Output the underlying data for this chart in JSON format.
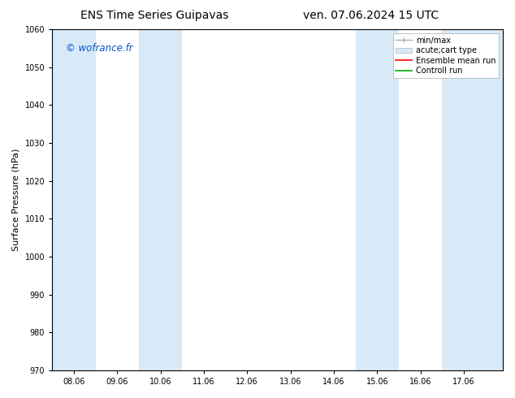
{
  "title_left": "ENS Time Series Guipavas",
  "title_right": "ven. 07.06.2024 15 UTC",
  "ylabel": "Surface Pressure (hPa)",
  "watermark": "© wofrance.fr",
  "watermark_color": "#0055cc",
  "ylim": [
    970,
    1060
  ],
  "yticks": [
    970,
    980,
    990,
    1000,
    1010,
    1020,
    1030,
    1040,
    1050,
    1060
  ],
  "x_labels": [
    "08.06",
    "09.06",
    "10.06",
    "11.06",
    "12.06",
    "13.06",
    "14.06",
    "15.06",
    "16.06",
    "17.06"
  ],
  "x_values": [
    0,
    1,
    2,
    3,
    4,
    5,
    6,
    7,
    8,
    9
  ],
  "xlim": [
    -0.5,
    9.9
  ],
  "shaded_bands": [
    {
      "x_start": -0.5,
      "x_end": 0.5
    },
    {
      "x_start": 1.5,
      "x_end": 2.5
    },
    {
      "x_start": 6.5,
      "x_end": 7.5
    },
    {
      "x_start": 8.5,
      "x_end": 9.9
    }
  ],
  "band_color": "#d8eaf8",
  "background_color": "#ffffff",
  "legend_entries": [
    {
      "label": "min/max"
    },
    {
      "label": "acute;cart type"
    },
    {
      "label": "Ensemble mean run"
    },
    {
      "label": "Controll run"
    }
  ],
  "legend_colors": [
    "#aaaaaa",
    "#c8ddf0",
    "#ff0000",
    "#00aa00"
  ],
  "title_fontsize": 10,
  "tick_fontsize": 7,
  "ylabel_fontsize": 8,
  "legend_fontsize": 7
}
